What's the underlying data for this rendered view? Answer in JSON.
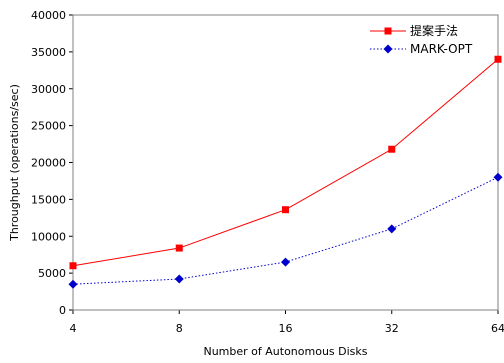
{
  "chart_data": {
    "type": "line",
    "xlabel": "Number of Autonomous Disks",
    "ylabel": "Throughput (operations/sec)",
    "categories": [
      "4",
      "8",
      "16",
      "32",
      "64"
    ],
    "ylim": [
      0,
      40000
    ],
    "yticks": [
      0,
      5000,
      10000,
      15000,
      20000,
      25000,
      30000,
      35000,
      40000
    ],
    "grid": false,
    "legend_position": "top-right",
    "series": [
      {
        "name": "提案手法",
        "values": [
          6000,
          8400,
          13600,
          21800,
          34000
        ],
        "color": "#ff0000",
        "marker": "square",
        "line_style": "solid"
      },
      {
        "name": "MARK-OPT",
        "values": [
          3500,
          4200,
          6500,
          11000,
          18000
        ],
        "color": "#0000cc",
        "marker": "diamond",
        "line_style": "dotted"
      }
    ]
  }
}
